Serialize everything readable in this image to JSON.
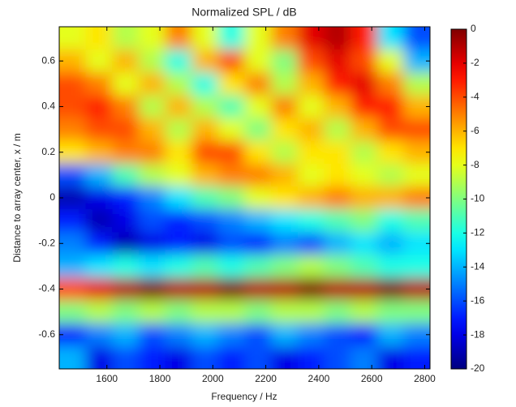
{
  "chart_data": {
    "type": "heatmap",
    "title": "Normalized SPL / dB",
    "x_label": "Frequency / Hz",
    "y_label": "Distance to array center, x / m",
    "x": [
      1470,
      1570,
      1670,
      1770,
      1870,
      1970,
      2070,
      2170,
      2270,
      2370,
      2470,
      2570,
      2670,
      2770
    ],
    "y": [
      0.7,
      0.6,
      0.5,
      0.4,
      0.3,
      0.2,
      0.1,
      0.0,
      -0.1,
      -0.2,
      -0.3,
      -0.4,
      -0.5,
      -0.6,
      -0.7
    ],
    "values": [
      [
        -8,
        -7,
        -9,
        -8,
        -5,
        -8,
        -12,
        -8,
        -5,
        -2,
        -1,
        -3,
        -13,
        -16
      ],
      [
        -6,
        -8,
        -6,
        -9,
        -12,
        -6,
        -4,
        -8,
        -10,
        -4,
        -2,
        -4,
        -8,
        -14
      ],
      [
        -4,
        -5,
        -8,
        -6,
        -9,
        -12,
        -7,
        -5,
        -9,
        -6,
        -3,
        -2,
        -5,
        -9
      ],
      [
        -4,
        -3,
        -5,
        -9,
        -6,
        -9,
        -11,
        -8,
        -5,
        -8,
        -6,
        -3,
        -3,
        -6
      ],
      [
        -5,
        -4,
        -4,
        -6,
        -9,
        -6,
        -8,
        -10,
        -7,
        -6,
        -9,
        -6,
        -4,
        -4
      ],
      [
        -7,
        -6,
        -5,
        -5,
        -7,
        -4,
        -4,
        -7,
        -9,
        -7,
        -7,
        -9,
        -7,
        -6
      ],
      [
        -16,
        -14,
        -11,
        -9,
        -8,
        -6,
        -5,
        -5,
        -6,
        -8,
        -7,
        -8,
        -9,
        -8
      ],
      [
        -19,
        -18,
        -17,
        -15,
        -13,
        -11,
        -10,
        -8,
        -7,
        -6,
        -5,
        -6,
        -6,
        -5
      ],
      [
        -17,
        -19,
        -18,
        -16,
        -17,
        -16,
        -15,
        -14,
        -13,
        -12,
        -11,
        -10,
        -12,
        -11
      ],
      [
        -15,
        -17,
        -19,
        -18,
        -17,
        -18,
        -16,
        -17,
        -15,
        -16,
        -14,
        -13,
        -14,
        -13
      ],
      [
        -14,
        -13,
        -12,
        -13,
        -12,
        -11,
        -12,
        -11,
        -10,
        -9,
        -10,
        -11,
        -12,
        -12
      ],
      [
        -4,
        -2,
        -1,
        0,
        -1,
        -1,
        0,
        -1,
        -1,
        0,
        -1,
        -1,
        0,
        -1
      ],
      [
        -10,
        -9,
        -10,
        -9,
        -10,
        -9,
        -9,
        -10,
        -9,
        -9,
        -10,
        -9,
        -10,
        -10
      ],
      [
        -17,
        -15,
        -14,
        -16,
        -15,
        -14,
        -15,
        -16,
        -14,
        -15,
        -16,
        -17,
        -14,
        -15
      ],
      [
        -14,
        -18,
        -16,
        -17,
        -18,
        -16,
        -17,
        -16,
        -18,
        -17,
        -16,
        -15,
        -18,
        -17
      ]
    ],
    "xlim": [
      1420,
      2820
    ],
    "xticks": [
      1600,
      1800,
      2000,
      2200,
      2400,
      2600,
      2800
    ],
    "ylim": [
      -0.75,
      0.75
    ],
    "yticks": [
      -0.6,
      -0.4,
      -0.2,
      0,
      0.2,
      0.4,
      0.6
    ],
    "colormap": "jet",
    "clim": [
      -20,
      0
    ],
    "colorbar_ticks": [
      0,
      -2,
      -4,
      -6,
      -8,
      -10,
      -12,
      -14,
      -16,
      -18,
      -20
    ]
  }
}
